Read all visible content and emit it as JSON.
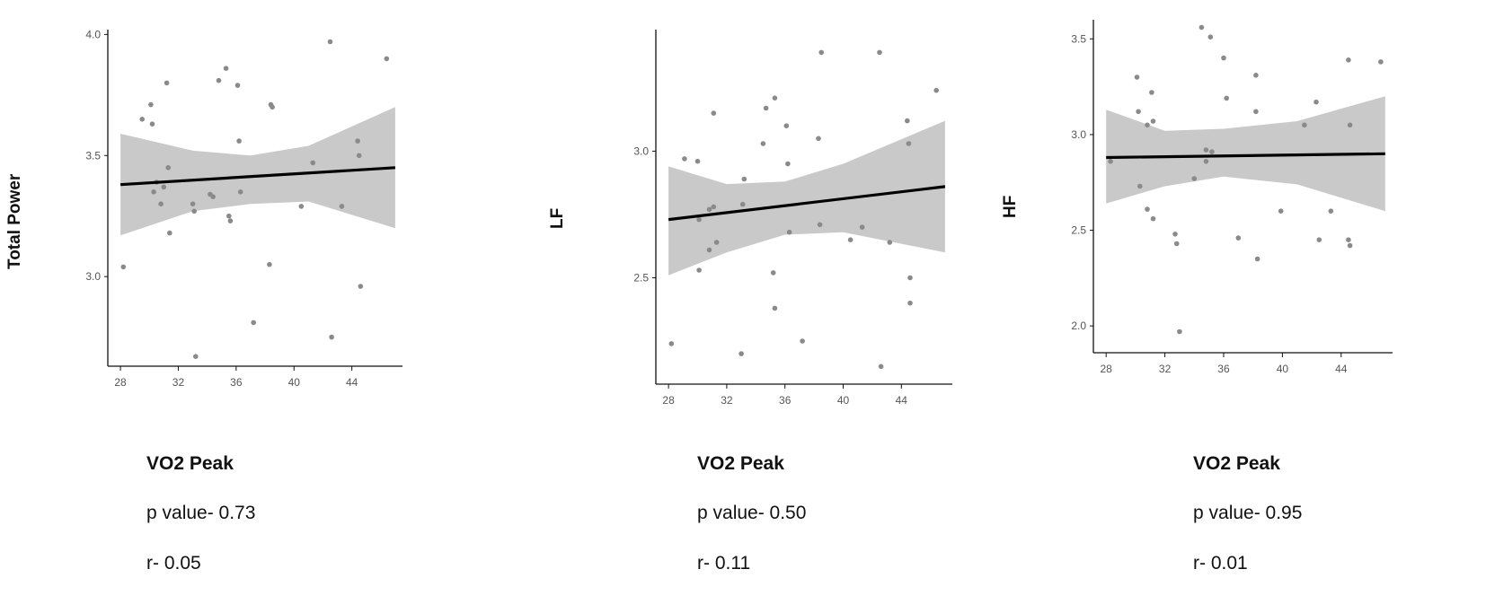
{
  "chart_data": [
    {
      "type": "scatter",
      "ylabel": "Total Power",
      "xlabel": "VO2 Peak",
      "stats": {
        "p": "p value- 0.73",
        "r": "r-  0.05"
      },
      "xlim": [
        27.5,
        47.5
      ],
      "ylim": [
        2.63,
        4.02
      ],
      "xticks": [
        "28",
        "32",
        "36",
        "40",
        "44"
      ],
      "yticks": [
        "3.0",
        "3.5",
        "4.0"
      ],
      "points": [
        [
          28.2,
          3.04
        ],
        [
          29.5,
          3.65
        ],
        [
          30.1,
          3.71
        ],
        [
          30.2,
          3.63
        ],
        [
          30.3,
          3.35
        ],
        [
          30.5,
          3.39
        ],
        [
          30.8,
          3.3
        ],
        [
          31.0,
          3.37
        ],
        [
          31.2,
          3.8
        ],
        [
          31.3,
          3.45
        ],
        [
          31.4,
          3.18
        ],
        [
          33.0,
          3.3
        ],
        [
          33.1,
          3.27
        ],
        [
          33.2,
          2.67
        ],
        [
          34.2,
          3.34
        ],
        [
          34.4,
          3.33
        ],
        [
          34.8,
          3.81
        ],
        [
          35.3,
          3.86
        ],
        [
          35.5,
          3.25
        ],
        [
          35.6,
          3.23
        ],
        [
          36.1,
          3.79
        ],
        [
          36.2,
          3.56
        ],
        [
          36.3,
          3.35
        ],
        [
          37.2,
          2.81
        ],
        [
          38.3,
          3.05
        ],
        [
          38.4,
          3.71
        ],
        [
          38.5,
          3.7
        ],
        [
          40.5,
          3.29
        ],
        [
          41.3,
          3.47
        ],
        [
          42.5,
          3.97
        ],
        [
          42.6,
          2.75
        ],
        [
          43.3,
          3.29
        ],
        [
          44.4,
          3.56
        ],
        [
          44.5,
          3.5
        ],
        [
          44.6,
          2.96
        ],
        [
          46.4,
          3.9
        ]
      ],
      "fit": {
        "x": [
          28,
          47
        ],
        "y": [
          3.38,
          3.45
        ]
      },
      "band": {
        "x": [
          28,
          33,
          37,
          41,
          47
        ],
        "upper": [
          3.59,
          3.52,
          3.5,
          3.54,
          3.7
        ],
        "lower": [
          3.17,
          3.27,
          3.3,
          3.31,
          3.2
        ]
      }
    },
    {
      "type": "scatter",
      "ylabel": "LF",
      "xlabel": "VO2 Peak",
      "stats": {
        "p": "p value- 0.50",
        "r": "r-  0.11"
      },
      "xlim": [
        27.5,
        47.5
      ],
      "ylim": [
        2.08,
        3.48
      ],
      "xticks": [
        "28",
        "32",
        "36",
        "40",
        "44"
      ],
      "yticks": [
        "2.5",
        "3.0"
      ],
      "points": [
        [
          28.2,
          2.24
        ],
        [
          29.1,
          2.97
        ],
        [
          30.0,
          2.96
        ],
        [
          30.1,
          2.73
        ],
        [
          30.1,
          2.53
        ],
        [
          30.8,
          2.77
        ],
        [
          30.8,
          2.61
        ],
        [
          31.1,
          2.78
        ],
        [
          31.1,
          3.15
        ],
        [
          31.3,
          2.64
        ],
        [
          33.0,
          2.2
        ],
        [
          33.1,
          2.79
        ],
        [
          33.2,
          2.89
        ],
        [
          34.5,
          3.03
        ],
        [
          34.7,
          3.17
        ],
        [
          35.2,
          2.52
        ],
        [
          35.3,
          3.21
        ],
        [
          35.3,
          2.38
        ],
        [
          36.1,
          3.1
        ],
        [
          36.2,
          2.95
        ],
        [
          36.3,
          2.68
        ],
        [
          37.2,
          2.25
        ],
        [
          38.3,
          3.05
        ],
        [
          38.4,
          2.71
        ],
        [
          38.5,
          3.39
        ],
        [
          40.5,
          2.65
        ],
        [
          41.3,
          2.7
        ],
        [
          42.5,
          3.39
        ],
        [
          42.6,
          2.15
        ],
        [
          43.2,
          2.64
        ],
        [
          44.4,
          3.12
        ],
        [
          44.5,
          3.03
        ],
        [
          44.6,
          2.5
        ],
        [
          44.6,
          2.4
        ],
        [
          46.4,
          3.24
        ]
      ],
      "fit": {
        "x": [
          28,
          47
        ],
        "y": [
          2.73,
          2.86
        ]
      },
      "band": {
        "x": [
          28,
          32,
          36,
          40,
          47
        ],
        "upper": [
          2.94,
          2.87,
          2.88,
          2.95,
          3.12
        ],
        "lower": [
          2.51,
          2.6,
          2.67,
          2.68,
          2.6
        ]
      }
    },
    {
      "type": "scatter",
      "ylabel": "HF",
      "xlabel": "VO2 Peak",
      "stats": {
        "p": "p value- 0.95",
        "r": "r- 0.01"
      },
      "xlim": [
        27.5,
        47.5
      ],
      "ylim": [
        1.86,
        3.6
      ],
      "xticks": [
        "28",
        "32",
        "36",
        "40",
        "44"
      ],
      "yticks": [
        "2.0",
        "2.5",
        "3.0",
        "3.5"
      ],
      "points": [
        [
          28.3,
          2.86
        ],
        [
          30.1,
          3.3
        ],
        [
          30.2,
          3.12
        ],
        [
          30.3,
          2.73
        ],
        [
          30.8,
          3.05
        ],
        [
          30.8,
          2.61
        ],
        [
          31.1,
          3.22
        ],
        [
          31.2,
          2.56
        ],
        [
          31.2,
          3.07
        ],
        [
          32.7,
          2.48
        ],
        [
          32.8,
          2.43
        ],
        [
          33.0,
          1.97
        ],
        [
          34.0,
          2.77
        ],
        [
          34.5,
          3.56
        ],
        [
          34.8,
          2.92
        ],
        [
          34.8,
          2.86
        ],
        [
          35.1,
          3.51
        ],
        [
          35.2,
          2.91
        ],
        [
          36.0,
          3.4
        ],
        [
          36.2,
          3.19
        ],
        [
          37.0,
          2.46
        ],
        [
          38.2,
          3.31
        ],
        [
          38.2,
          3.12
        ],
        [
          38.3,
          2.35
        ],
        [
          39.9,
          2.6
        ],
        [
          41.5,
          3.05
        ],
        [
          42.3,
          3.17
        ],
        [
          42.5,
          2.45
        ],
        [
          43.3,
          2.6
        ],
        [
          44.5,
          3.39
        ],
        [
          44.6,
          3.05
        ],
        [
          44.5,
          2.45
        ],
        [
          44.6,
          2.42
        ],
        [
          46.7,
          3.38
        ]
      ],
      "fit": {
        "x": [
          28,
          47
        ],
        "y": [
          2.88,
          2.9
        ]
      },
      "band": {
        "x": [
          28,
          32,
          36,
          41,
          47
        ],
        "upper": [
          3.13,
          3.02,
          3.03,
          3.07,
          3.2
        ],
        "lower": [
          2.64,
          2.73,
          2.78,
          2.74,
          2.6
        ]
      }
    }
  ]
}
